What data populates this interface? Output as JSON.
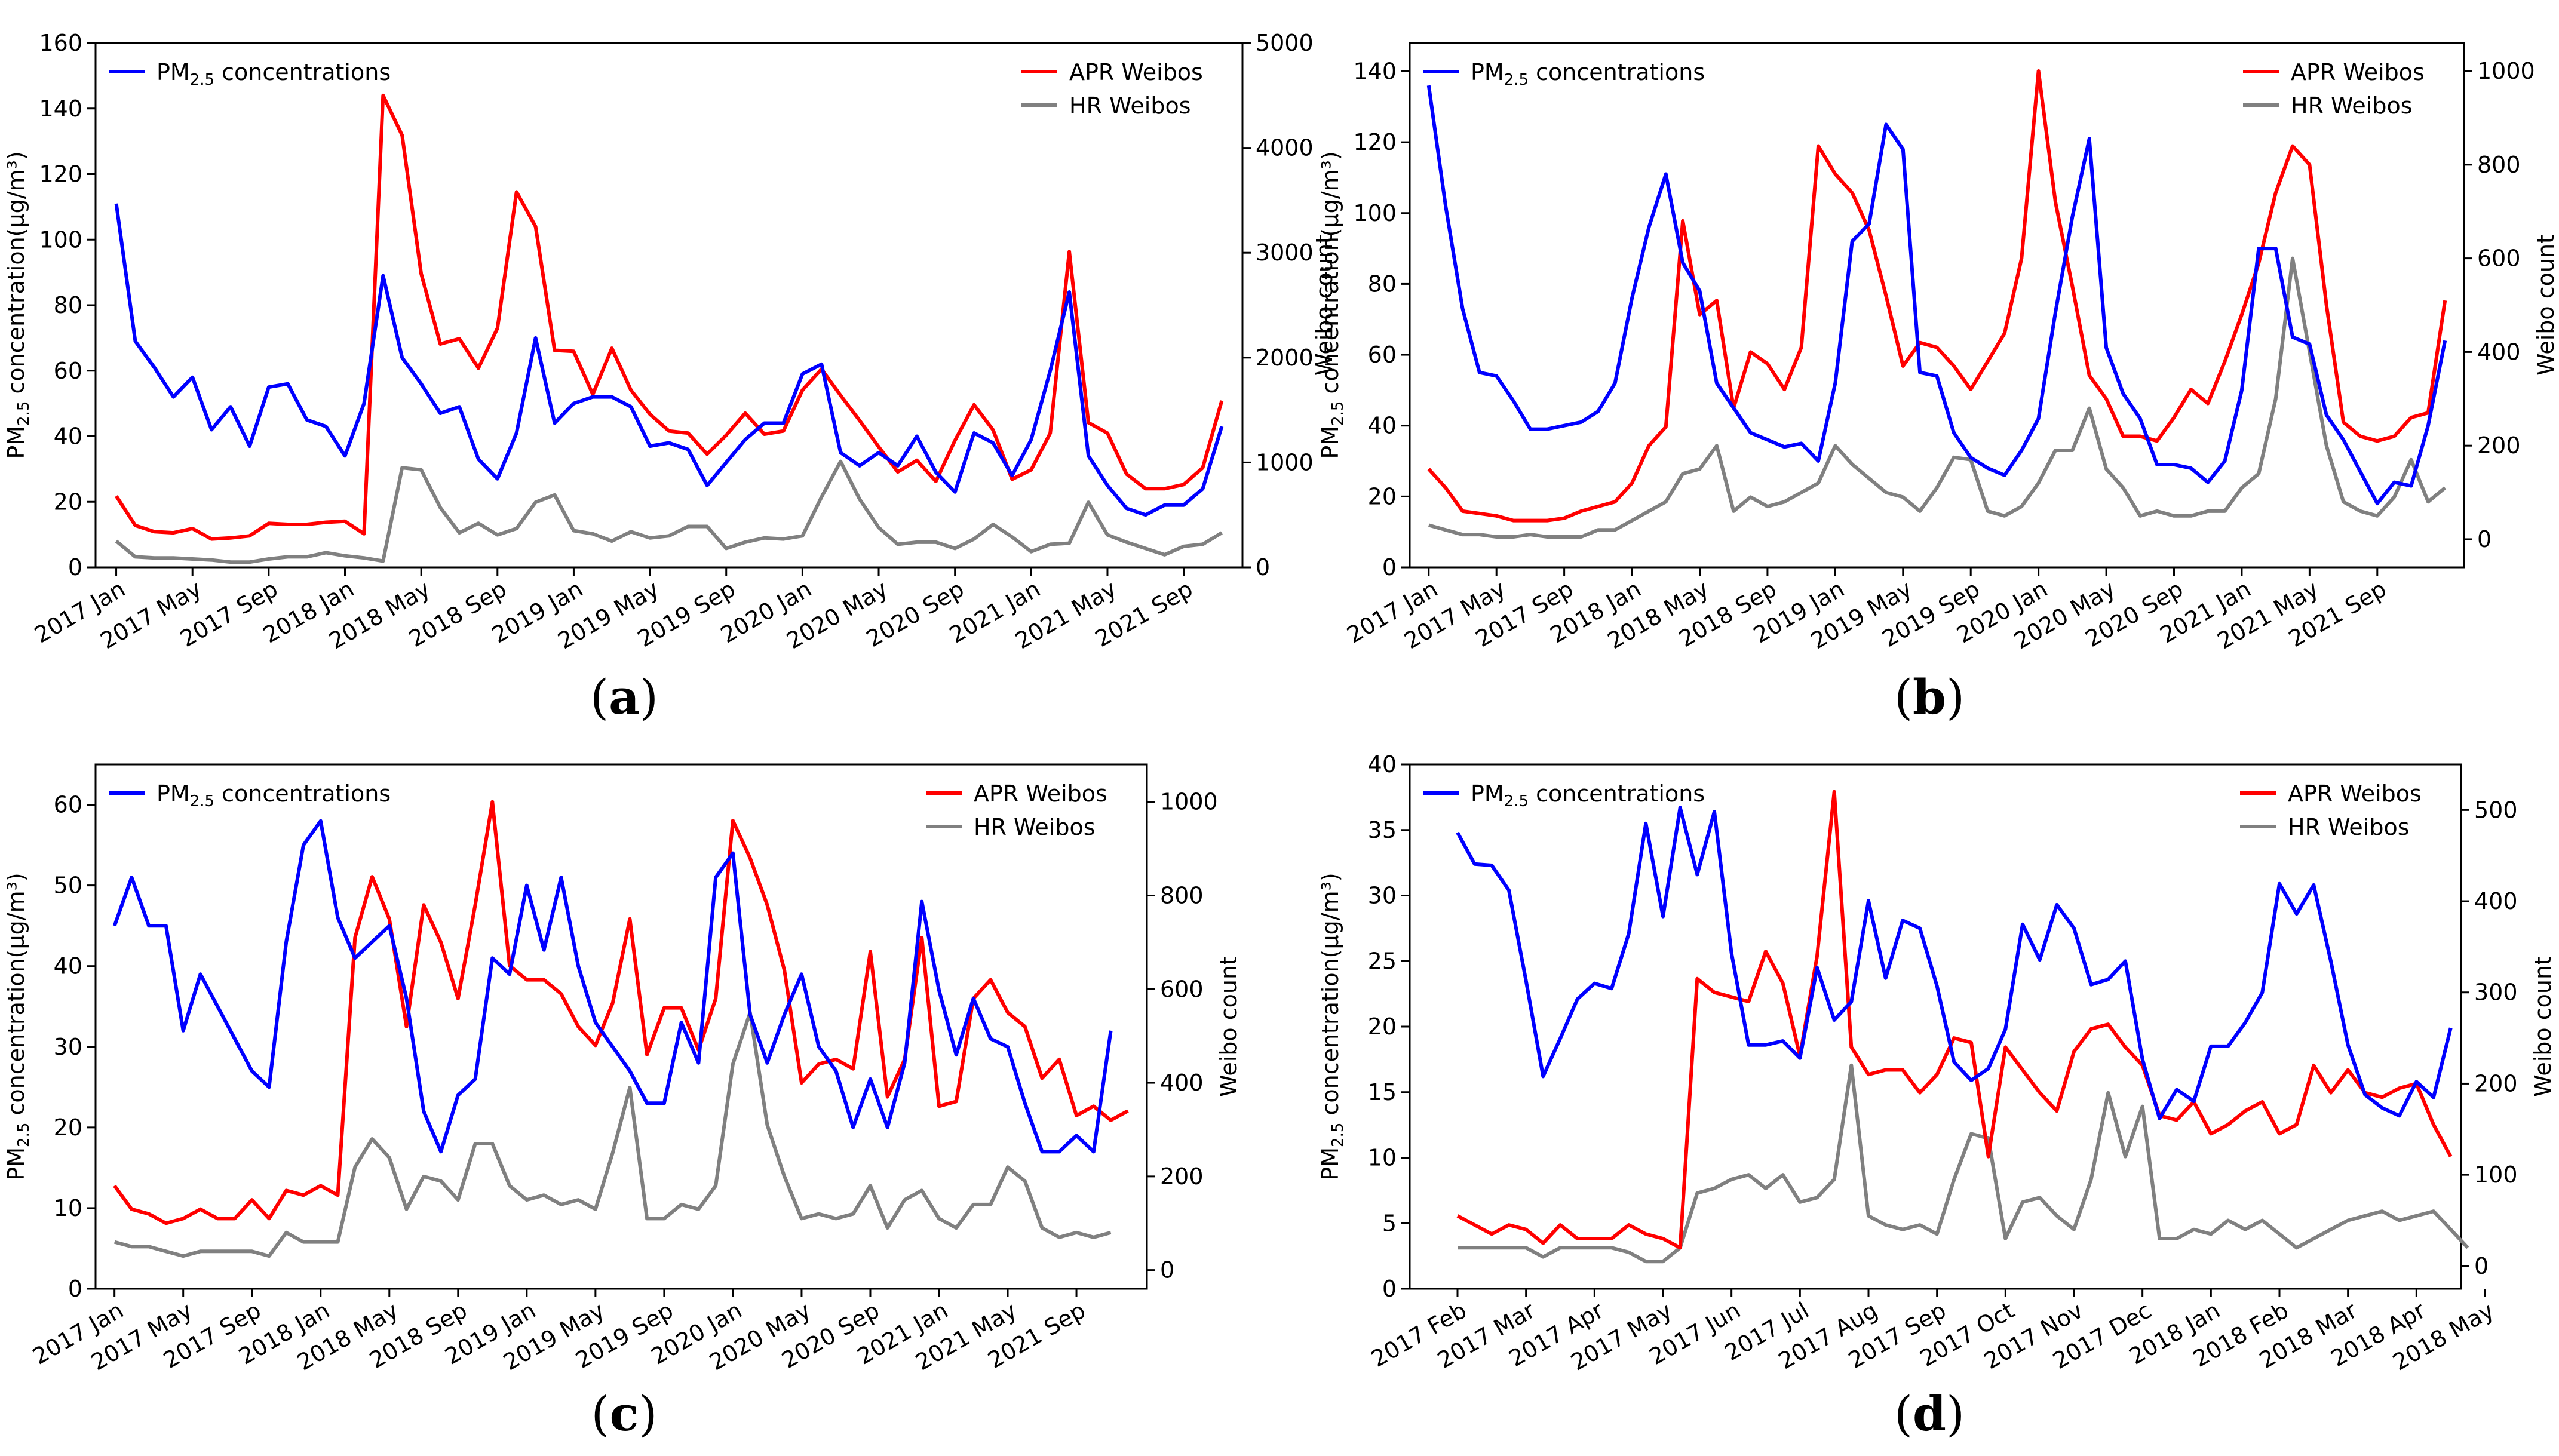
{
  "colors": {
    "pm": "#0000ff",
    "apr": "#ff0000",
    "hr": "#808080",
    "axis": "#000000"
  },
  "legend": {
    "pm_text": "PM",
    "pm_sub": "2.5",
    "pm_rest": " concentrations",
    "apr": "APR Weibos",
    "hr": "HR Weibos"
  },
  "labels": {
    "ylabel_left_a": "PM",
    "ylabel_left_sub": "2.5",
    "ylabel_left_rest": " concentration(µg/m³)",
    "ylabel_right": "Weibo count"
  },
  "captions": [
    {
      "pre": "(",
      "letter": "a",
      "post": ")"
    },
    {
      "pre": "(",
      "letter": "b",
      "post": ")"
    },
    {
      "pre": "(",
      "letter": "c",
      "post": ")"
    },
    {
      "pre": "(",
      "letter": "d",
      "post": ")"
    }
  ],
  "chart_data": [
    {
      "id": "a",
      "type": "line",
      "xticks": [
        "2017 Jan",
        "2017 May",
        "2017 Sep",
        "2018 Jan",
        "2018 May",
        "2018 Sep",
        "2019 Jan",
        "2019 May",
        "2019 Sep",
        "2020 Jan",
        "2020 May",
        "2020 Sep",
        "2021 Jan",
        "2021 May",
        "2021 Sep"
      ],
      "ylim_left": [
        0,
        160
      ],
      "yticks_left": [
        0,
        20,
        40,
        60,
        80,
        100,
        120,
        140,
        160
      ],
      "ylim_right": [
        0,
        5000
      ],
      "yticks_right": [
        0,
        1000,
        2000,
        3000,
        4000,
        5000
      ],
      "series": [
        {
          "name": "PM2.5 concentrations",
          "axis": "left",
          "values": [
            111,
            69,
            61,
            52,
            58,
            42,
            49,
            37,
            55,
            56,
            45,
            43,
            34,
            50,
            89,
            64,
            56,
            47,
            49,
            33,
            27,
            41,
            70,
            44,
            50,
            52,
            52,
            49,
            37,
            38,
            36,
            25,
            32,
            39,
            44,
            44,
            59,
            62,
            35,
            31,
            35,
            31,
            40,
            29,
            23,
            41,
            38,
            28,
            39,
            60,
            84,
            34,
            25,
            18,
            16,
            19,
            19,
            24,
            43
          ]
        },
        {
          "name": "APR Weibos",
          "axis": "right",
          "values": [
            680,
            400,
            340,
            330,
            370,
            270,
            280,
            300,
            420,
            410,
            410,
            430,
            440,
            320,
            4500,
            4120,
            2800,
            2130,
            2180,
            1900,
            2280,
            3580,
            3250,
            2070,
            2060,
            1650,
            2090,
            1690,
            1460,
            1300,
            1280,
            1080,
            1260,
            1470,
            1270,
            1300,
            1690,
            1890,
            1640,
            1400,
            1150,
            910,
            1020,
            820,
            1210,
            1550,
            1310,
            840,
            930,
            1280,
            3010,
            1380,
            1280,
            890,
            750,
            750,
            790,
            950,
            1590
          ]
        },
        {
          "name": "HR Weibos",
          "axis": "right",
          "values": [
            250,
            100,
            90,
            90,
            80,
            70,
            50,
            50,
            80,
            100,
            100,
            140,
            110,
            90,
            60,
            950,
            930,
            570,
            330,
            420,
            310,
            370,
            620,
            690,
            350,
            320,
            250,
            340,
            280,
            300,
            390,
            390,
            180,
            240,
            280,
            270,
            300,
            670,
            1010,
            650,
            380,
            220,
            240,
            240,
            180,
            270,
            410,
            290,
            150,
            220,
            230,
            620,
            310,
            240,
            180,
            120,
            200,
            220,
            330
          ]
        }
      ]
    },
    {
      "id": "b",
      "type": "line",
      "xticks": [
        "2017 Jan",
        "2017 May",
        "2017 Sep",
        "2018 Jan",
        "2018 May",
        "2018 Sep",
        "2019 Jan",
        "2019 May",
        "2019 Sep",
        "2020 Jan",
        "2020 May",
        "2020 Sep",
        "2021 Jan",
        "2021 May",
        "2021 Sep"
      ],
      "ylim_left": [
        0,
        148
      ],
      "yticks_left": [
        0,
        20,
        40,
        60,
        80,
        100,
        120,
        140
      ],
      "ylim_right": [
        -60,
        1060
      ],
      "yticks_right": [
        0,
        200,
        400,
        600,
        800,
        1000
      ],
      "series": [
        {
          "name": "PM2.5 concentrations",
          "axis": "left",
          "values": [
            136,
            102,
            73,
            55,
            54,
            47,
            39,
            39,
            40,
            41,
            44,
            52,
            76,
            96,
            111,
            86,
            78,
            52,
            45,
            38,
            36,
            34,
            35,
            30,
            52,
            92,
            97,
            125,
            118,
            55,
            54,
            38,
            31,
            28,
            26,
            33,
            42,
            72,
            99,
            121,
            62,
            49,
            42,
            29,
            29,
            28,
            24,
            30,
            50,
            90,
            90,
            65,
            63,
            43,
            36,
            27,
            18,
            24,
            23,
            40,
            64
          ]
        },
        {
          "name": "APR Weibos",
          "axis": "right",
          "values": [
            150,
            110,
            60,
            55,
            50,
            40,
            40,
            40,
            45,
            60,
            70,
            80,
            120,
            200,
            240,
            680,
            480,
            510,
            280,
            400,
            375,
            320,
            410,
            840,
            780,
            740,
            660,
            520,
            370,
            420,
            410,
            370,
            320,
            380,
            440,
            600,
            1000,
            720,
            540,
            350,
            300,
            220,
            220,
            210,
            260,
            320,
            290,
            380,
            480,
            590,
            740,
            840,
            800,
            500,
            250,
            220,
            210,
            220,
            260,
            270,
            510
          ]
        },
        {
          "name": "HR Weibos",
          "axis": "right",
          "values": [
            30,
            20,
            10,
            10,
            5,
            5,
            10,
            5,
            5,
            5,
            20,
            20,
            40,
            60,
            80,
            140,
            150,
            200,
            60,
            90,
            70,
            80,
            100,
            120,
            200,
            160,
            130,
            100,
            90,
            60,
            110,
            175,
            170,
            60,
            50,
            70,
            120,
            190,
            190,
            280,
            150,
            110,
            50,
            60,
            50,
            50,
            60,
            60,
            110,
            140,
            300,
            600,
            400,
            200,
            80,
            60,
            50,
            90,
            170,
            80,
            110
          ]
        }
      ]
    },
    {
      "id": "c",
      "type": "line",
      "xticks": [
        "2017 Jan",
        "2017 May",
        "2017 Sep",
        "2018 Jan",
        "2018 May",
        "2018 Sep",
        "2019 Jan",
        "2019 May",
        "2019 Sep",
        "2020 Jan",
        "2020 May",
        "2020 Sep",
        "2021 Jan",
        "2021 May",
        "2021 Sep"
      ],
      "ylim_left": [
        0,
        65
      ],
      "yticks_left": [
        0,
        10,
        20,
        30,
        40,
        50,
        60
      ],
      "ylim_right": [
        -40,
        1080
      ],
      "yticks_right": [
        0,
        200,
        400,
        600,
        800,
        1000
      ],
      "series": [
        {
          "name": "PM2.5 concentrations",
          "axis": "left",
          "values": [
            45,
            51,
            45,
            45,
            32,
            39,
            35,
            31,
            27,
            25,
            43,
            55,
            58,
            46,
            41,
            43,
            45,
            36,
            22,
            17,
            24,
            26,
            41,
            39,
            50,
            42,
            51,
            40,
            33,
            30,
            27,
            23,
            23,
            33,
            28,
            51,
            54,
            34,
            28,
            34,
            39,
            30,
            27,
            20,
            26,
            20,
            28,
            48,
            37,
            29,
            36,
            31,
            30,
            23,
            17,
            17,
            19,
            17,
            32
          ]
        },
        {
          "name": "APR Weibos",
          "axis": "right",
          "values": [
            180,
            130,
            120,
            100,
            110,
            130,
            110,
            110,
            150,
            110,
            170,
            160,
            180,
            160,
            710,
            840,
            750,
            520,
            780,
            700,
            580,
            780,
            1000,
            650,
            620,
            620,
            590,
            520,
            480,
            570,
            750,
            460,
            560,
            560,
            470,
            580,
            960,
            880,
            780,
            640,
            400,
            440,
            450,
            430,
            680,
            370,
            450,
            710,
            350,
            360,
            580,
            620,
            550,
            520,
            410,
            450,
            330,
            350,
            320,
            340
          ]
        },
        {
          "name": "HR Weibos",
          "axis": "right",
          "values": [
            60,
            50,
            50,
            40,
            30,
            40,
            40,
            40,
            40,
            30,
            80,
            60,
            60,
            60,
            220,
            280,
            240,
            130,
            200,
            190,
            150,
            270,
            270,
            180,
            150,
            160,
            140,
            150,
            130,
            250,
            390,
            110,
            110,
            140,
            130,
            180,
            440,
            550,
            310,
            200,
            110,
            120,
            110,
            120,
            180,
            90,
            150,
            170,
            110,
            90,
            140,
            140,
            220,
            190,
            90,
            70,
            80,
            70,
            80
          ]
        }
      ]
    },
    {
      "id": "d",
      "type": "line",
      "xticks": [
        "2017 Feb",
        "2017 Mar",
        "2017 Apr",
        "2017 May",
        "2017 Jun",
        "2017 Jul",
        "2017 Aug",
        "2017 Sep",
        "2017 Oct",
        "2017 Nov",
        "2017 Dec",
        "2018 Jan",
        "2018 Feb",
        "2018 Mar",
        "2018 Apr",
        "2018 May"
      ],
      "ylim_left": [
        0,
        40
      ],
      "yticks_left": [
        0,
        5,
        10,
        15,
        20,
        25,
        30,
        35,
        40
      ],
      "ylim_right": [
        -25,
        550
      ],
      "yticks_right": [
        0,
        100,
        200,
        300,
        400,
        500
      ],
      "series": [
        {
          "name": "PM2.5 concentrations",
          "axis": "left",
          "values": [
            34.8,
            32.4,
            32.3,
            30.4,
            23.5,
            16.2,
            19.1,
            22.1,
            23.3,
            22.9,
            27.1,
            35.5,
            28.4,
            36.7,
            31.6,
            36.4,
            25.6,
            18.6,
            18.6,
            18.9,
            17.6,
            24.5,
            20.5,
            21.9,
            29.6,
            23.7,
            28.1,
            27.5,
            23.1,
            17.3,
            15.9,
            16.8,
            19.8,
            27.8,
            25.1,
            29.3,
            27.5,
            23.2,
            23.6,
            25.0,
            17.5,
            13.0,
            15.2,
            14.3,
            18.5,
            18.5,
            20.3,
            22.6,
            30.9,
            28.6,
            30.8,
            25.0,
            18.6,
            14.8,
            13.8,
            13.2,
            15.8,
            14.6,
            19.9
          ]
        },
        {
          "name": "APR Weibos",
          "axis": "right",
          "values": [
            55,
            45,
            35,
            45,
            40,
            25,
            45,
            30,
            30,
            30,
            45,
            35,
            30,
            20,
            315,
            300,
            295,
            290,
            345,
            310,
            230,
            340,
            520,
            240,
            210,
            215,
            215,
            190,
            210,
            250,
            245,
            120,
            240,
            215,
            190,
            170,
            235,
            260,
            265,
            240,
            220,
            165,
            160,
            180,
            145,
            155,
            170,
            180,
            145,
            155,
            220,
            190,
            215,
            190,
            185,
            195,
            200,
            155,
            120
          ]
        },
        {
          "name": "HR Weibos",
          "axis": "right",
          "values": [
            20,
            20,
            20,
            20,
            20,
            10,
            20,
            20,
            20,
            20,
            15,
            5,
            5,
            20,
            80,
            85,
            95,
            100,
            85,
            100,
            70,
            75,
            95,
            220,
            55,
            45,
            40,
            45,
            35,
            95,
            145,
            140,
            30,
            70,
            75,
            55,
            40,
            95,
            190,
            120,
            175,
            30,
            30,
            40,
            35,
            50,
            40,
            50,
            35,
            20,
            30,
            40,
            50,
            55,
            60,
            50,
            55,
            60,
            40,
            20
          ]
        }
      ]
    }
  ]
}
